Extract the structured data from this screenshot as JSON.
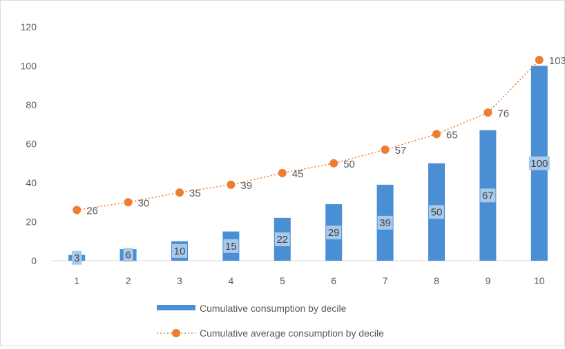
{
  "chart_data": {
    "type": "bar",
    "categories": [
      "1",
      "2",
      "3",
      "4",
      "5",
      "6",
      "7",
      "8",
      "9",
      "10"
    ],
    "series": [
      {
        "name": "Cumulative consumption by decile",
        "kind": "bar",
        "color": "#4a8fd3",
        "label_bg": "#a9c9ea",
        "values": [
          3,
          6,
          10,
          15,
          22,
          29,
          39,
          50,
          67,
          100
        ]
      },
      {
        "name": "Cumulative average consumption by decile",
        "kind": "line",
        "style": "dotted",
        "marker": "circle",
        "color": "#ed7d31",
        "values": [
          26,
          30,
          35,
          39,
          45,
          50,
          57,
          65,
          76,
          103
        ]
      }
    ],
    "ylim": [
      0,
      120
    ],
    "yticks": [
      0,
      20,
      40,
      60,
      80,
      100,
      120
    ],
    "grid": false,
    "legend": "bottom",
    "title": "",
    "xlabel": "",
    "ylabel": ""
  }
}
